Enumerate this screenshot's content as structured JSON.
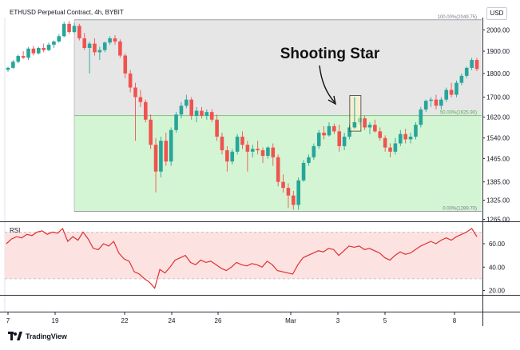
{
  "header": {
    "title": "ETHUSD Perpetual Contract, 4h, BYBIT",
    "currency": "USD"
  },
  "footer": {
    "brand": "TradingView",
    "logo_icon": "tradingview-logo-icon"
  },
  "annotation": {
    "text": "Shooting Star"
  },
  "colors": {
    "up": "#26a69a",
    "down": "#ef5350",
    "retracement_zone_top": "#e6e6e6",
    "retracement_zone_bottom": "#d4f5d4",
    "fib_line": "#7cc47c",
    "rsi_line": "#e0302f",
    "rsi_band": "#fde2e2",
    "shooting_star_box": "#fff6c2"
  },
  "chart_data": [
    {
      "type": "candlestick",
      "title": "ETHUSD Perpetual Contract, 4h, BYBIT",
      "x_ticks": [
        "7",
        "19",
        "22",
        "24",
        "26",
        "Mar",
        "3",
        "5",
        "8"
      ],
      "y_ticks": [
        "2000.00",
        "1900.00",
        "1800.00",
        "1700.00",
        "1620.00",
        "1540.00",
        "1465.00",
        "1385.00",
        "1325.00",
        "1265.00"
      ],
      "ylim": [
        1265,
        2060
      ],
      "y_scale": "log",
      "grid": false,
      "fib_levels": [
        {
          "label": "100.00%(2049.75)",
          "value": 2049.75
        },
        {
          "label": "50.00%(1625.90)",
          "value": 1625.9
        },
        {
          "label": "0.00%(1289.70)",
          "value": 1289.7
        }
      ],
      "candles": [
        [
          1816,
          1830,
          1808,
          1825
        ],
        [
          1825,
          1860,
          1820,
          1852
        ],
        [
          1852,
          1885,
          1845,
          1878
        ],
        [
          1878,
          1900,
          1865,
          1870
        ],
        [
          1870,
          1920,
          1860,
          1912
        ],
        [
          1912,
          1925,
          1880,
          1890
        ],
        [
          1890,
          1920,
          1885,
          1915
        ],
        [
          1915,
          1935,
          1895,
          1905
        ],
        [
          1905,
          1940,
          1900,
          1930
        ],
        [
          1930,
          1950,
          1915,
          1945
        ],
        [
          1945,
          1980,
          1940,
          1970
        ],
        [
          1970,
          2040,
          1965,
          2030
        ],
        [
          2030,
          2045,
          1980,
          1990
        ],
        [
          1990,
          2035,
          1985,
          2020
        ],
        [
          2020,
          2030,
          1950,
          1960
        ],
        [
          1960,
          1985,
          1905,
          1915
        ],
        [
          1915,
          1945,
          1800,
          1935
        ],
        [
          1935,
          1960,
          1880,
          1895
        ],
        [
          1895,
          1920,
          1860,
          1905
        ],
        [
          1905,
          1945,
          1895,
          1940
        ],
        [
          1940,
          1970,
          1930,
          1960
        ],
        [
          1960,
          1975,
          1930,
          1945
        ],
        [
          1945,
          1955,
          1870,
          1880
        ],
        [
          1880,
          1890,
          1780,
          1800
        ],
        [
          1800,
          1815,
          1720,
          1740
        ],
        [
          1740,
          1760,
          1530,
          1700
        ],
        [
          1700,
          1730,
          1660,
          1680
        ],
        [
          1680,
          1690,
          1600,
          1610
        ],
        [
          1610,
          1630,
          1500,
          1515
        ],
        [
          1515,
          1540,
          1350,
          1420
        ],
        [
          1420,
          1545,
          1400,
          1530
        ],
        [
          1530,
          1560,
          1440,
          1455
        ],
        [
          1455,
          1580,
          1440,
          1570
        ],
        [
          1570,
          1640,
          1560,
          1630
        ],
        [
          1630,
          1680,
          1615,
          1665
        ],
        [
          1665,
          1710,
          1655,
          1690
        ],
        [
          1690,
          1700,
          1610,
          1625
        ],
        [
          1625,
          1660,
          1600,
          1645
        ],
        [
          1645,
          1660,
          1615,
          1625
        ],
        [
          1625,
          1650,
          1610,
          1640
        ],
        [
          1640,
          1650,
          1600,
          1610
        ],
        [
          1610,
          1630,
          1530,
          1545
        ],
        [
          1545,
          1560,
          1480,
          1495
        ],
        [
          1495,
          1510,
          1420,
          1455
        ],
        [
          1455,
          1500,
          1445,
          1490
        ],
        [
          1490,
          1555,
          1480,
          1545
        ],
        [
          1545,
          1565,
          1500,
          1515
        ],
        [
          1515,
          1530,
          1420,
          1490
        ],
        [
          1490,
          1515,
          1470,
          1500
        ],
        [
          1500,
          1530,
          1480,
          1495
        ],
        [
          1495,
          1505,
          1450,
          1475
        ],
        [
          1475,
          1510,
          1465,
          1505
        ],
        [
          1505,
          1520,
          1440,
          1470
        ],
        [
          1470,
          1480,
          1370,
          1385
        ],
        [
          1385,
          1410,
          1350,
          1365
        ],
        [
          1365,
          1380,
          1300,
          1340
        ],
        [
          1340,
          1355,
          1295,
          1310
        ],
        [
          1310,
          1400,
          1295,
          1390
        ],
        [
          1390,
          1460,
          1385,
          1450
        ],
        [
          1450,
          1480,
          1440,
          1470
        ],
        [
          1470,
          1520,
          1460,
          1510
        ],
        [
          1510,
          1570,
          1500,
          1560
        ],
        [
          1560,
          1585,
          1535,
          1550
        ],
        [
          1550,
          1600,
          1545,
          1585
        ],
        [
          1585,
          1595,
          1555,
          1565
        ],
        [
          1565,
          1590,
          1490,
          1510
        ],
        [
          1510,
          1560,
          1495,
          1545
        ],
        [
          1545,
          1590,
          1535,
          1580
        ],
        [
          1580,
          1700,
          1575,
          1600
        ],
        [
          1600,
          1625,
          1590,
          1615
        ],
        [
          1615,
          1625,
          1570,
          1580
        ],
        [
          1580,
          1600,
          1555,
          1590
        ],
        [
          1590,
          1610,
          1560,
          1565
        ],
        [
          1565,
          1580,
          1530,
          1540
        ],
        [
          1540,
          1550,
          1490,
          1505
        ],
        [
          1505,
          1520,
          1470,
          1490
        ],
        [
          1490,
          1540,
          1480,
          1520
        ],
        [
          1520,
          1570,
          1510,
          1555
        ],
        [
          1555,
          1575,
          1520,
          1535
        ],
        [
          1535,
          1560,
          1520,
          1545
        ],
        [
          1545,
          1600,
          1535,
          1590
        ],
        [
          1590,
          1660,
          1580,
          1650
        ],
        [
          1650,
          1690,
          1640,
          1685
        ],
        [
          1685,
          1700,
          1660,
          1690
        ],
        [
          1690,
          1710,
          1650,
          1665
        ],
        [
          1665,
          1700,
          1650,
          1690
        ],
        [
          1690,
          1740,
          1680,
          1730
        ],
        [
          1730,
          1760,
          1700,
          1710
        ],
        [
          1710,
          1770,
          1700,
          1760
        ],
        [
          1760,
          1800,
          1750,
          1790
        ],
        [
          1790,
          1830,
          1780,
          1825
        ],
        [
          1825,
          1870,
          1815,
          1860
        ],
        [
          1860,
          1870,
          1810,
          1820
        ]
      ]
    },
    {
      "type": "line",
      "title": "RSI",
      "ylim": [
        17,
        80
      ],
      "y_ticks": [
        "60.00",
        "40.00",
        "20.00"
      ],
      "band": [
        30,
        70
      ],
      "values": [
        60,
        64,
        66,
        65,
        68,
        67,
        70,
        71,
        68,
        70,
        69,
        73,
        62,
        66,
        63,
        70,
        64,
        56,
        55,
        60,
        58,
        62,
        52,
        47,
        45,
        36,
        34,
        30,
        27,
        22,
        38,
        35,
        40,
        46,
        48,
        50,
        44,
        42,
        46,
        44,
        45,
        42,
        39,
        37,
        40,
        44,
        42,
        41,
        43,
        42,
        40,
        45,
        42,
        37,
        36,
        35,
        34,
        42,
        48,
        50,
        52,
        54,
        53,
        56,
        55,
        50,
        54,
        58,
        57,
        58,
        55,
        56,
        54,
        52,
        48,
        46,
        50,
        53,
        51,
        52,
        55,
        58,
        60,
        62,
        60,
        63,
        65,
        63,
        66,
        68,
        70,
        73,
        66
      ]
    }
  ]
}
